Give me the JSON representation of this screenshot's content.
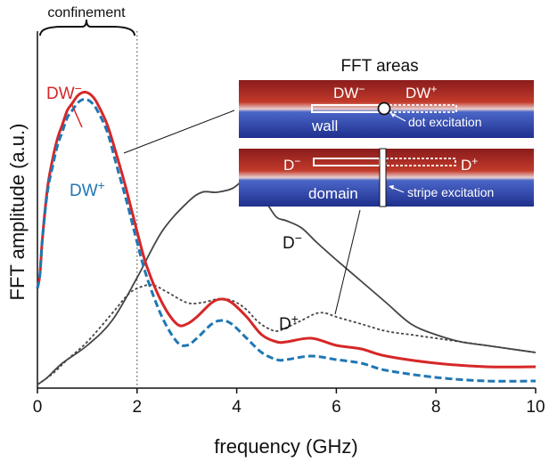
{
  "chart_data": {
    "type": "line",
    "xlabel": "frequency (GHz)",
    "ylabel": "FFT amplitude (a.u.)",
    "xlim": [
      0,
      10
    ],
    "ylim": [
      0,
      1
    ],
    "xticks": [
      "0",
      "2",
      "4",
      "6",
      "8",
      "10"
    ],
    "grid": false,
    "annotations": {
      "confinement": "confinement",
      "confinement_x": 2,
      "inset_title": "FFT areas",
      "dw_minus_base": "DW",
      "dw_plus_base": "DW",
      "d_minus_base": "D",
      "d_plus_base": "D",
      "minus": "−",
      "plus": "+",
      "wall": "wall",
      "domain": "domain",
      "dot_excitation": "dot excitation",
      "stripe_excitation": "stripe excitation"
    },
    "series": [
      {
        "key": "D-",
        "color": "#444444",
        "dash": "solid",
        "x": [
          0,
          0.2,
          0.5,
          1.0,
          1.5,
          2.0,
          2.5,
          3.0,
          3.3,
          3.6,
          3.9,
          4.1,
          4.2,
          4.4,
          4.6,
          4.8,
          5.0,
          5.3,
          5.6,
          6.0,
          6.5,
          7.0,
          7.5,
          8.0,
          8.5,
          9.0,
          9.5,
          10.0
        ],
        "y": [
          0.01,
          0.03,
          0.07,
          0.12,
          0.19,
          0.31,
          0.44,
          0.52,
          0.55,
          0.55,
          0.56,
          0.58,
          0.58,
          0.56,
          0.52,
          0.48,
          0.47,
          0.45,
          0.41,
          0.36,
          0.3,
          0.24,
          0.18,
          0.15,
          0.13,
          0.12,
          0.11,
          0.1
        ]
      },
      {
        "key": "D+",
        "color": "#444444",
        "dash": "dotted",
        "x": [
          0,
          0.3,
          0.6,
          1.0,
          1.5,
          1.8,
          2.0,
          2.3,
          2.6,
          3.0,
          3.3,
          3.6,
          3.8,
          4.0,
          4.2,
          4.4,
          4.6,
          4.8,
          5.0,
          5.3,
          5.6,
          5.8,
          6.0,
          6.5,
          7.0,
          7.5,
          8.0,
          8.5,
          9.0,
          9.5,
          10.0
        ],
        "y": [
          0.01,
          0.04,
          0.08,
          0.13,
          0.21,
          0.26,
          0.28,
          0.29,
          0.27,
          0.24,
          0.24,
          0.25,
          0.25,
          0.24,
          0.22,
          0.19,
          0.17,
          0.16,
          0.17,
          0.19,
          0.21,
          0.21,
          0.2,
          0.18,
          0.16,
          0.15,
          0.14,
          0.13,
          0.12,
          0.11,
          0.1
        ]
      },
      {
        "key": "DW-",
        "color": "#d62728",
        "dash": "solid",
        "x": [
          0,
          0.05,
          0.1,
          0.2,
          0.3,
          0.4,
          0.5,
          0.6,
          0.7,
          0.8,
          0.9,
          1.0,
          1.1,
          1.2,
          1.4,
          1.6,
          1.8,
          2.0,
          2.2,
          2.5,
          2.8,
          3.0,
          3.2,
          3.5,
          3.7,
          3.9,
          4.2,
          4.5,
          4.8,
          5.0,
          5.5,
          6.0,
          6.5,
          7.0,
          8.0,
          9.0,
          10.0
        ],
        "y": [
          0.28,
          0.32,
          0.42,
          0.56,
          0.64,
          0.7,
          0.74,
          0.78,
          0.8,
          0.82,
          0.83,
          0.83,
          0.82,
          0.8,
          0.74,
          0.65,
          0.55,
          0.44,
          0.34,
          0.24,
          0.18,
          0.18,
          0.2,
          0.24,
          0.25,
          0.24,
          0.2,
          0.15,
          0.13,
          0.13,
          0.14,
          0.12,
          0.11,
          0.09,
          0.07,
          0.06,
          0.06
        ]
      },
      {
        "key": "DW+",
        "color": "#1f77b4",
        "dash": "dashed",
        "x": [
          0,
          0.05,
          0.1,
          0.2,
          0.3,
          0.4,
          0.5,
          0.6,
          0.7,
          0.8,
          0.9,
          1.0,
          1.1,
          1.2,
          1.4,
          1.6,
          1.8,
          2.0,
          2.2,
          2.5,
          2.8,
          3.0,
          3.2,
          3.5,
          3.7,
          3.9,
          4.2,
          4.5,
          4.8,
          5.0,
          5.5,
          6.0,
          6.5,
          7.0,
          8.0,
          9.0,
          10.0
        ],
        "y": [
          0.28,
          0.32,
          0.42,
          0.55,
          0.62,
          0.68,
          0.72,
          0.76,
          0.78,
          0.8,
          0.81,
          0.81,
          0.8,
          0.78,
          0.72,
          0.62,
          0.52,
          0.41,
          0.31,
          0.2,
          0.13,
          0.12,
          0.14,
          0.18,
          0.19,
          0.18,
          0.14,
          0.1,
          0.08,
          0.08,
          0.09,
          0.08,
          0.07,
          0.05,
          0.03,
          0.02,
          0.02
        ]
      }
    ]
  }
}
